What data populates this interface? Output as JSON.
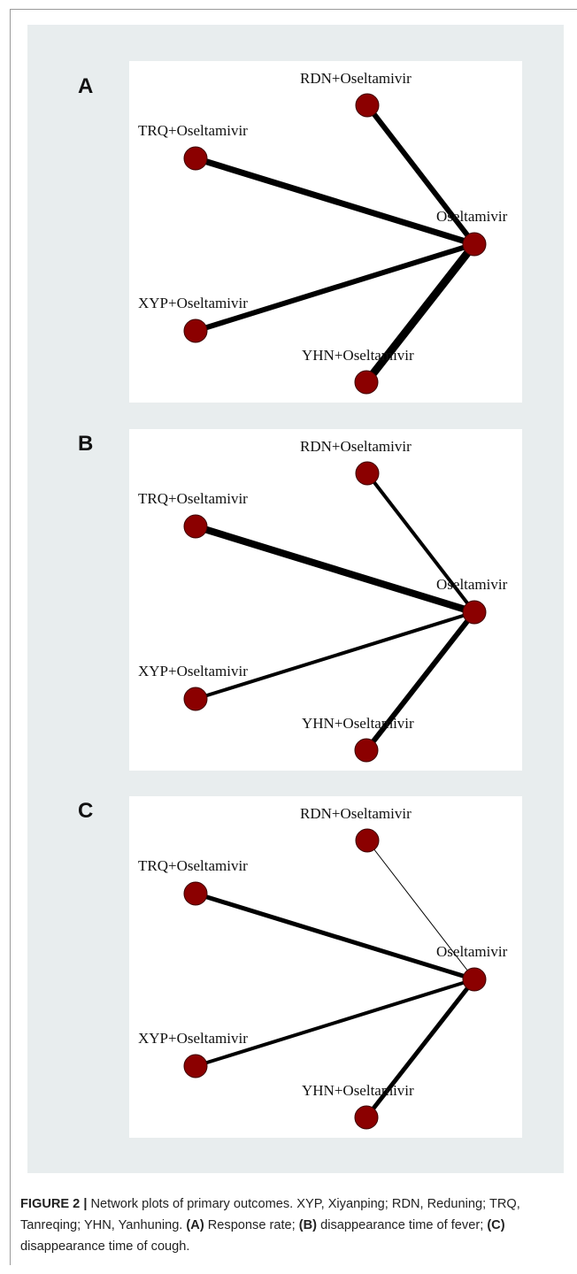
{
  "figure": {
    "panels": [
      {
        "letter": "A",
        "nodes": [
          {
            "id": "rdn",
            "label": "RDN+Oseltamivir"
          },
          {
            "id": "trq",
            "label": "TRQ+Oseltamivir"
          },
          {
            "id": "osel",
            "label": "Oseltamivir"
          },
          {
            "id": "xyp",
            "label": "XYP+Oseltamivir"
          },
          {
            "id": "yhn",
            "label": "YHN+Oseltamivir"
          }
        ],
        "edges": [
          {
            "from": "rdn",
            "to": "osel",
            "weight": 6
          },
          {
            "from": "trq",
            "to": "osel",
            "weight": 7
          },
          {
            "from": "xyp",
            "to": "osel",
            "weight": 6
          },
          {
            "from": "yhn",
            "to": "osel",
            "weight": 9
          }
        ]
      },
      {
        "letter": "B",
        "nodes": [
          {
            "id": "rdn",
            "label": "RDN+Oseltamivir"
          },
          {
            "id": "trq",
            "label": "TRQ+Oseltamivir"
          },
          {
            "id": "osel",
            "label": "Oseltamivir"
          },
          {
            "id": "xyp",
            "label": "XYP+Oseltamivir"
          },
          {
            "id": "yhn",
            "label": "YHN+Oseltamivir"
          }
        ],
        "edges": [
          {
            "from": "rdn",
            "to": "osel",
            "weight": 4
          },
          {
            "from": "trq",
            "to": "osel",
            "weight": 8
          },
          {
            "from": "xyp",
            "to": "osel",
            "weight": 4
          },
          {
            "from": "yhn",
            "to": "osel",
            "weight": 6
          }
        ]
      },
      {
        "letter": "C",
        "nodes": [
          {
            "id": "rdn",
            "label": "RDN+Oseltamivir"
          },
          {
            "id": "trq",
            "label": "TRQ+Oseltamivir"
          },
          {
            "id": "osel",
            "label": "Oseltamivir"
          },
          {
            "id": "xyp",
            "label": "XYP+Oseltamivir"
          },
          {
            "id": "yhn",
            "label": "YHN+Oseltamivir"
          }
        ],
        "edges": [
          {
            "from": "rdn",
            "to": "osel",
            "weight": 1
          },
          {
            "from": "trq",
            "to": "osel",
            "weight": 5
          },
          {
            "from": "xyp",
            "to": "osel",
            "weight": 4
          },
          {
            "from": "yhn",
            "to": "osel",
            "weight": 5
          }
        ]
      }
    ],
    "style": {
      "node_fill": "#8b0000",
      "node_stroke": "#3a0000",
      "edge_color": "#000000",
      "background": "#e8edee"
    }
  },
  "caption": {
    "label": "FIGURE 2 |",
    "intro": " Network plots of primary outcomes. XYP, Xiyanping; RDN, Reduning; TRQ, Tanreqing; YHN, Yanhuning. ",
    "a_label": "(A)",
    "a_text": " Response rate; ",
    "b_label": "(B)",
    "b_text": " disappearance time of fever; ",
    "c_label": "(C)",
    "c_text": " disappearance time of cough."
  }
}
